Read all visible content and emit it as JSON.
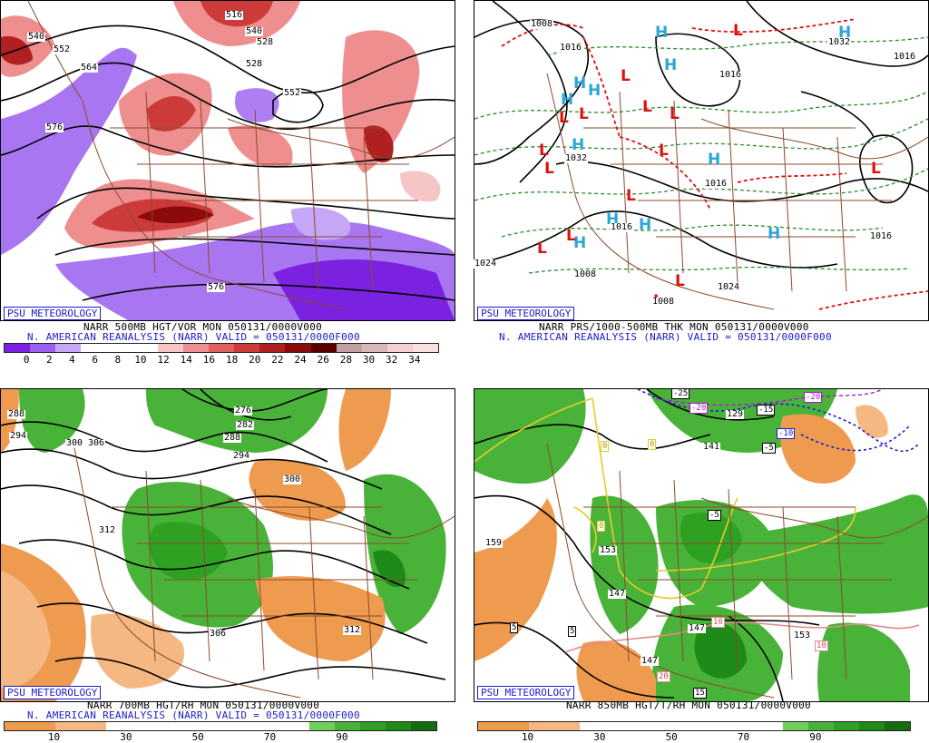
{
  "branding": "PSU METEOROLOGY",
  "panels": [
    {
      "id": "tl",
      "line1": "NARR 500MB HGT/VOR MON 050131/0000V000",
      "line2": "N. AMERICAN REANALYSIS (NARR) VALID = 050131/0000F000",
      "contour_labels": [
        "540",
        "552",
        "564",
        "576",
        "516",
        "528",
        "552",
        "576",
        "528",
        "540"
      ],
      "colorbar": {
        "colors": [
          "#7a22e0",
          "#9a5ef0",
          "#c4a8f5",
          "#ffffff",
          "#ffffff",
          "#ffffff",
          "#f6c6c6",
          "#ee8e8e",
          "#e06060",
          "#cc3a3a",
          "#b02020",
          "#8b0a0a",
          "#5a0000",
          "#c0a0a0",
          "#d8b8b8",
          "#f5d0d0",
          "#f8e0e0"
        ],
        "ticks": [
          "0",
          "2",
          "4",
          "6",
          "8",
          "10",
          "12",
          "14",
          "16",
          "18",
          "20",
          "22",
          "24",
          "26",
          "28",
          "30",
          "32",
          "34"
        ]
      }
    },
    {
      "id": "tr",
      "line1": "NARR PRS/1000-500MB THK MON 050131/0000V000",
      "line2": "N. AMERICAN REANALYSIS (NARR) VALID = 050131/0000F000",
      "highs": [
        "H",
        "H",
        "H",
        "H",
        "H",
        "H",
        "H",
        "H",
        "H",
        "H",
        "H",
        "H"
      ],
      "lows": [
        "L",
        "L",
        "L",
        "L",
        "L",
        "L",
        "L",
        "L",
        "L",
        "L",
        "L",
        "L",
        "L",
        "L",
        "L"
      ],
      "isobar_labels": [
        "1008",
        "1016",
        "1032",
        "1032",
        "1016",
        "1016",
        "1024",
        "1016",
        "1024",
        "1008",
        "1008",
        "1016",
        "1016"
      ]
    },
    {
      "id": "bl",
      "line1": "NARR 700MB HGT/RH MON 050131/0000V000",
      "line2": "N. AMERICAN REANALYSIS (NARR) VALID = 050131/0000F000",
      "contour_labels": [
        "288",
        "294",
        "300",
        "306",
        "276",
        "282",
        "288",
        "294",
        "300",
        "312",
        "306",
        "312"
      ],
      "colorbar": {
        "colors": [
          "#ee9a4f",
          "#ee9a4f",
          "#f6b882",
          "#f6b882",
          "#ffffff",
          "#ffffff",
          "#ffffff",
          "#ffffff",
          "#ffffff",
          "#ffffff",
          "#ffffff",
          "#ffffff",
          "#6fce5c",
          "#49b339",
          "#2ea123",
          "#1e8a18",
          "#136c0e"
        ],
        "ticks": [
          "10",
          "30",
          "50",
          "70",
          "90"
        ]
      }
    },
    {
      "id": "br",
      "line1": "NARR 850MB HGT/T/RH MON 050131/0000V000",
      "line2": "",
      "contour_labels": [
        "159",
        "153",
        "147",
        "147",
        "147",
        "153",
        "129",
        "141"
      ],
      "temp_labels": [
        "-25",
        "-20",
        "-20",
        "-15",
        "-10",
        "-5",
        "-5",
        "0",
        "0",
        "0",
        "5",
        "5",
        "10",
        "10",
        "15",
        "20"
      ],
      "colorbar": {
        "colors": [
          "#ee9a4f",
          "#ee9a4f",
          "#f6b882",
          "#f6b882",
          "#ffffff",
          "#ffffff",
          "#ffffff",
          "#ffffff",
          "#ffffff",
          "#ffffff",
          "#ffffff",
          "#ffffff",
          "#6fce5c",
          "#49b339",
          "#2ea123",
          "#1e8a18",
          "#136c0e"
        ],
        "ticks": [
          "10",
          "30",
          "50",
          "70",
          "90"
        ]
      }
    }
  ]
}
